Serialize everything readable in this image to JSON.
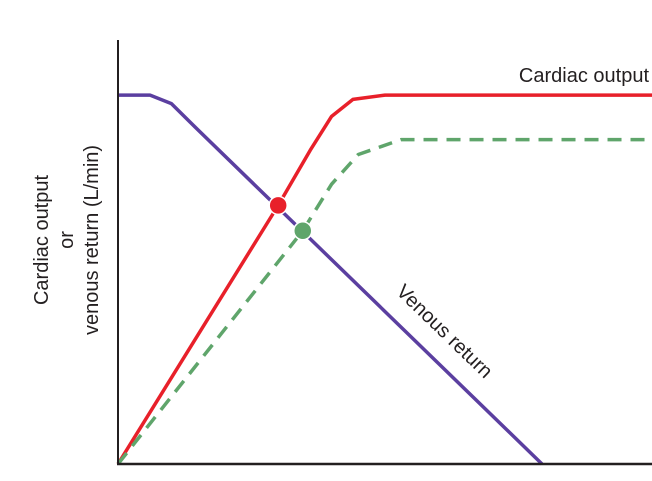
{
  "chart_data": {
    "type": "line",
    "title": "",
    "xlabel": "",
    "ylabel": [
      "Cardiac output",
      "or",
      "venous return (L/min)"
    ],
    "xlim": [
      0,
      10
    ],
    "ylim": [
      0,
      10
    ],
    "grid": false,
    "ticks": false,
    "series": [
      {
        "name": "Cardiac output",
        "color": "#e8202a",
        "style": "solid",
        "x": [
          0,
          3.0,
          3.6,
          4.0,
          4.4,
          5.0,
          10
        ],
        "y": [
          0,
          6.1,
          7.4,
          8.2,
          8.6,
          8.7,
          8.7
        ]
      },
      {
        "name": "",
        "color": "#5fa56b",
        "style": "dashed",
        "x": [
          0,
          3.46,
          4.0,
          4.5,
          5.3,
          10
        ],
        "y": [
          0,
          5.5,
          6.6,
          7.3,
          7.65,
          7.65
        ]
      },
      {
        "name": "Venous return",
        "color": "#5b3fa0",
        "style": "solid",
        "x": [
          0,
          0.6,
          1.0,
          1.4,
          7.94
        ],
        "y": [
          8.7,
          8.7,
          8.5,
          8.0,
          0
        ]
      }
    ],
    "points": [
      {
        "x": 3.0,
        "y": 6.1,
        "color": "#e8202a"
      },
      {
        "x": 3.46,
        "y": 5.5,
        "color": "#5fa56b"
      }
    ]
  }
}
